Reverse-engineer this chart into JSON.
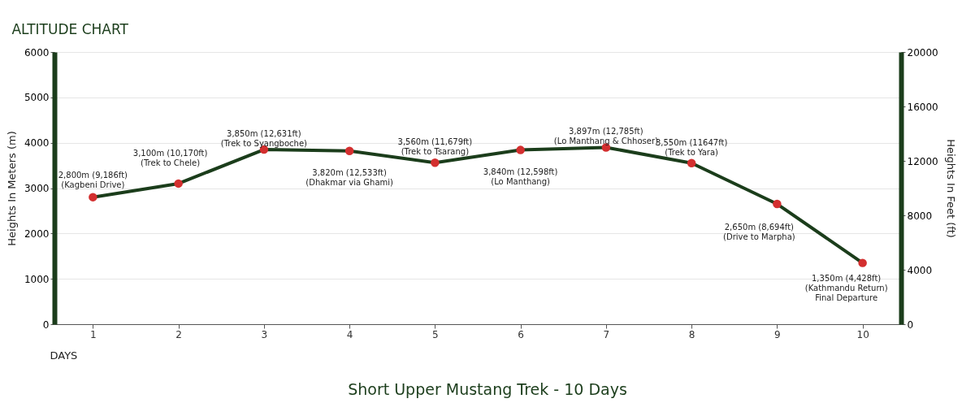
{
  "chart_data": {
    "type": "line",
    "title": "ALTITUDE CHART",
    "xlabel": "DAYS",
    "ylabel": "Heights In Meters (m)",
    "y2label": "Heights In Feet (ft)",
    "categories": [
      "1",
      "2",
      "3",
      "4",
      "5",
      "6",
      "7",
      "8",
      "9",
      "10"
    ],
    "series": [
      {
        "color": "#1b3d1b",
        "colors": [
          "#d32f2f",
          "#d32f2f",
          "#d32f2f",
          "#d32f2f",
          "#d32f2f",
          "#d32f2f",
          "#d32f2f",
          "#d32f2f",
          "#d32f2f",
          "#d32f2f"
        ],
        "values": [
          2800,
          3100,
          3850,
          3820,
          3560,
          3840,
          3897,
          3550,
          2650,
          1350
        ]
      }
    ],
    "ylim": [
      0,
      6000
    ],
    "yticks": [
      0,
      1000,
      2000,
      3000,
      4000,
      5000,
      6000
    ],
    "y2lim": [
      0,
      20000
    ],
    "y2ticks": [
      0,
      4000,
      8000,
      12000,
      16000,
      20000
    ],
    "grid": "y",
    "marker": "circle",
    "line_style": "solid",
    "annotations": [
      {
        "text": "2,800m (9,186ft)\n(Kagbeni Drive)",
        "x": "1",
        "y": 2800
      },
      {
        "text": "3,100m (10,170ft)\n(Trek to Chele)",
        "x": "2",
        "y": 3100
      },
      {
        "text": "3,850m (12,631ft)\n(Trek to Syangboche)",
        "x": "3",
        "y": 3850
      },
      {
        "text": "3,820m (12,533ft)\n(Dhakmar via Ghami)",
        "x": "4",
        "y": 3820
      },
      {
        "text": "3,560m (11,679ft)\n(Trek to Tsarang)",
        "x": "5",
        "y": 3560
      },
      {
        "text": "3,840m (12,598ft)\n(Lo Manthang)",
        "x": "6",
        "y": 3840
      },
      {
        "text": "3,897m (12,785ft)\n(Lo Manthang & Chhoser)",
        "x": "7",
        "y": 3897
      },
      {
        "text": "3,550m (11647ft)\n(Trek to Yara)",
        "x": "8",
        "y": 3550
      },
      {
        "text": "2,650m (8,694ft)\n(Drive to Marpha)",
        "x": "9",
        "y": 2650
      },
      {
        "text": "1,350m (4,428ft)\n(Kathmandu Return)\nFinal Departure",
        "x": "10",
        "y": 1350
      },
      "Short Upper Mustang Trek - 10 Days"
    ]
  }
}
